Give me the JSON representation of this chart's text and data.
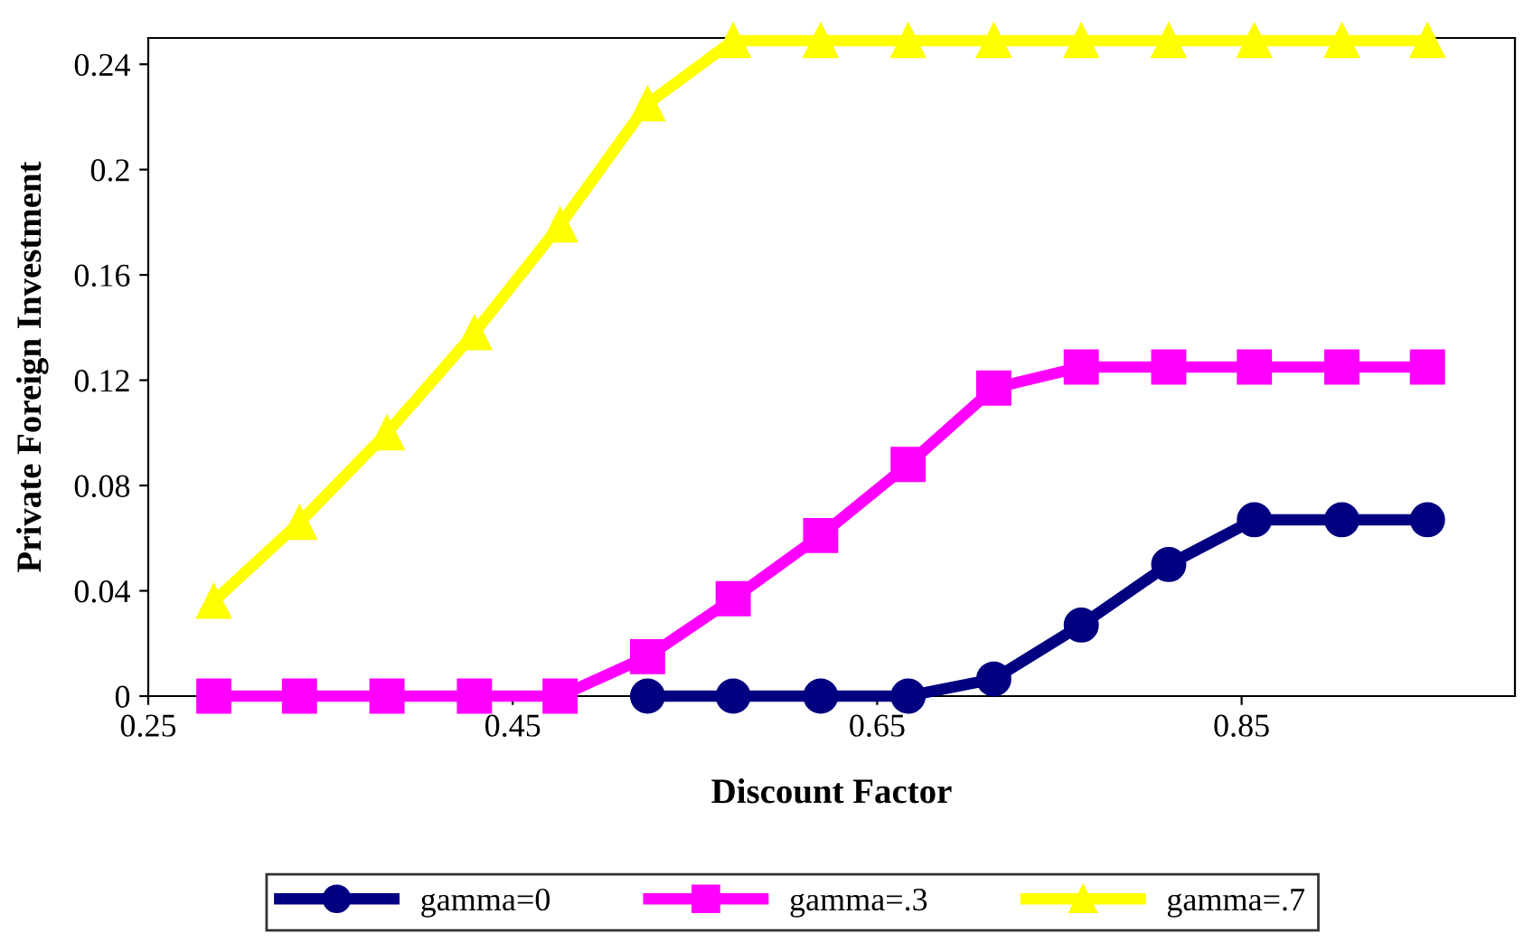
{
  "chart_data": {
    "type": "line",
    "xlabel": "Discount Factor",
    "ylabel": "Private Foreign Investment",
    "x": [
      0.286,
      0.333,
      0.381,
      0.429,
      0.476,
      0.524,
      0.571,
      0.619,
      0.667,
      0.714,
      0.762,
      0.81,
      0.857,
      0.905,
      0.952
    ],
    "series": [
      {
        "name": "gamma=0",
        "color": "#000080",
        "marker": "circle",
        "values": [
          null,
          null,
          null,
          null,
          null,
          0,
          0,
          0,
          0,
          0.0065,
          0.027,
          0.05,
          0.067,
          0.067,
          0.067
        ]
      },
      {
        "name": "gamma=.3",
        "color": "#ff00ff",
        "marker": "square",
        "values": [
          0,
          0,
          0,
          0,
          0,
          0.015,
          0.037,
          0.061,
          0.088,
          0.117,
          0.125,
          0.125,
          0.125,
          0.125,
          0.125
        ]
      },
      {
        "name": "gamma=.7",
        "color": "#ffff00",
        "marker": "triangle",
        "values": [
          0.036,
          0.066,
          0.1,
          0.138,
          0.179,
          0.225,
          0.249,
          0.249,
          0.249,
          0.249,
          0.249,
          0.249,
          0.249,
          0.249,
          0.249
        ]
      }
    ],
    "xlim": [
      0.25,
      1.0
    ],
    "xticks": [
      0.25,
      0.45,
      0.65,
      0.85
    ],
    "ylim": [
      0,
      0.25
    ],
    "yticks": [
      0,
      0.04,
      0.08,
      0.12,
      0.16,
      0.2,
      0.24
    ],
    "grid": false,
    "legend": "bottom",
    "line_style": "solid"
  }
}
